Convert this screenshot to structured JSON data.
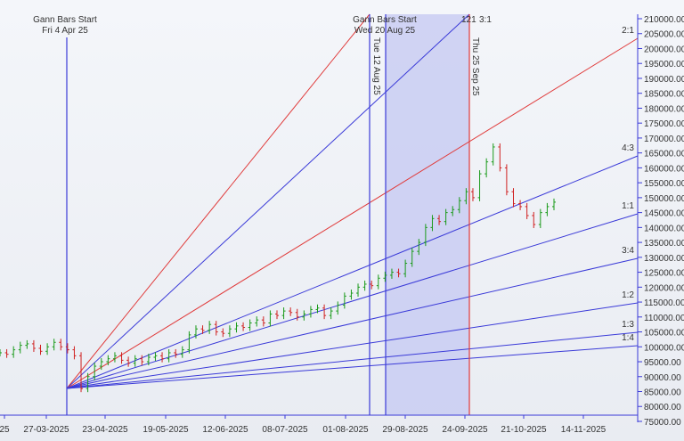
{
  "chart_data": {
    "type": "candlestick",
    "y_ticks": [
      210000,
      205000,
      200000,
      195000,
      190000,
      185000,
      180000,
      175000,
      170000,
      165000,
      160000,
      155000,
      150000,
      145000,
      140000,
      135000,
      130000,
      125000,
      120000,
      115000,
      110000,
      105000,
      100000,
      95000,
      90000,
      85000,
      80000,
      75000
    ],
    "y_tick_format": "0.00",
    "ylim": [
      75000,
      210000
    ],
    "x_tick_labels": [
      "25",
      "27-03-2025",
      "23-04-2025",
      "19-05-2025",
      "12-06-2025",
      "08-07-2025",
      "01-08-2025",
      "29-08-2025",
      "24-09-2025",
      "21-10-2025",
      "14-11-2025"
    ],
    "closes": [
      98000,
      97500,
      99000,
      100500,
      101000,
      99500,
      98500,
      100000,
      101500,
      100000,
      99000,
      97000,
      86000,
      90000,
      93500,
      95000,
      96000,
      97000,
      95500,
      94500,
      96000,
      95000,
      96500,
      97000,
      96000,
      98000,
      97500,
      99000,
      104000,
      106000,
      105500,
      107500,
      105000,
      104500,
      106000,
      107000,
      106500,
      108000,
      109000,
      108000,
      111000,
      110500,
      112000,
      111500,
      110000,
      111000,
      112500,
      113000,
      110500,
      112000,
      114000,
      117000,
      118000,
      120000,
      121000,
      120500,
      123000,
      124000,
      125000,
      124500,
      128000,
      132000,
      135000,
      140000,
      143000,
      142000,
      145000,
      146000,
      149000,
      152000,
      150000,
      158000,
      162000,
      167000,
      160000,
      152000,
      148000,
      147000,
      144000,
      141000,
      145000,
      147000,
      148500
    ],
    "gann_start_1": {
      "label": "Gann Bars Start",
      "date": "Fri 4 Apr 25"
    },
    "gann_start_2": {
      "label": "Gann Bars Start",
      "date": "Wed 20 Aug 25"
    },
    "vlines": [
      {
        "date": "Tue 12 Aug 25",
        "color": "#3a3ad8"
      },
      {
        "date": "Thu 25 Sep 25",
        "color": "#e03a3a"
      }
    ],
    "top_labels": [
      "121",
      "3:1"
    ],
    "fan_labels": [
      "2:1",
      "4:3",
      "1:1",
      "3:4",
      "1:2",
      "1:3",
      "1:4"
    ],
    "colors": {
      "up": "#1a9a1a",
      "down": "#d02020",
      "fan_blue": "#3a3ad8",
      "fan_red": "#e03a3a",
      "shade": "#c8ccf0"
    }
  }
}
